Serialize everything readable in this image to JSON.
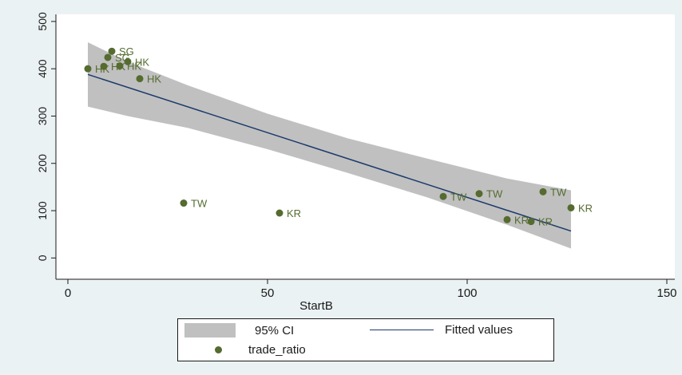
{
  "chart_data": {
    "type": "scatter",
    "title": "",
    "xlabel": "StartB",
    "ylabel": "",
    "xlim": [
      -3,
      152
    ],
    "ylim": [
      -45,
      515
    ],
    "x_ticks": [
      0,
      50,
      100,
      150
    ],
    "y_ticks": [
      0,
      100,
      200,
      300,
      400,
      500
    ],
    "grid": false,
    "legend_position": "bottom",
    "series": [
      {
        "name": "trade_ratio",
        "kind": "scatter",
        "color": "#556b2f",
        "points": [
          {
            "x": 5,
            "y": 400,
            "label": "HK"
          },
          {
            "x": 9,
            "y": 405,
            "label": "HK"
          },
          {
            "x": 10,
            "y": 424,
            "label": "SG"
          },
          {
            "x": 11,
            "y": 437,
            "label": "SG"
          },
          {
            "x": 13,
            "y": 406,
            "label": "HK"
          },
          {
            "x": 15,
            "y": 415,
            "label": "HK"
          },
          {
            "x": 18,
            "y": 379,
            "label": "HK"
          },
          {
            "x": 29,
            "y": 116,
            "label": "TW"
          },
          {
            "x": 53,
            "y": 95,
            "label": "KR"
          },
          {
            "x": 94,
            "y": 130,
            "label": "TW"
          },
          {
            "x": 103,
            "y": 136,
            "label": "TW"
          },
          {
            "x": 110,
            "y": 81,
            "label": "KR"
          },
          {
            "x": 116,
            "y": 77,
            "label": "KR"
          },
          {
            "x": 119,
            "y": 140,
            "label": "TW"
          },
          {
            "x": 126,
            "y": 106,
            "label": "KR"
          }
        ]
      },
      {
        "name": "Fitted values",
        "kind": "line",
        "color": "#1a3a6b",
        "points": [
          {
            "x": 5,
            "y": 388
          },
          {
            "x": 126,
            "y": 57
          }
        ]
      },
      {
        "name": "95% CI",
        "kind": "band",
        "color": "#c0c0c0",
        "x": [
          5,
          15,
          30,
          50,
          70,
          90,
          110,
          126
        ],
        "lower": [
          320,
          300,
          275,
          230,
          180,
          128,
          70,
          20
        ],
        "upper": [
          456,
          415,
          365,
          305,
          253,
          210,
          168,
          143
        ]
      }
    ]
  },
  "legend": {
    "ci_label": "95% CI",
    "fit_label": "Fitted values",
    "points_label": "trade_ratio"
  },
  "colors": {
    "background": "#eaf2f3",
    "plot_area": "#ffffff",
    "band": "#c0c0c0",
    "line": "#1a3a6b",
    "points": "#556b2f"
  }
}
